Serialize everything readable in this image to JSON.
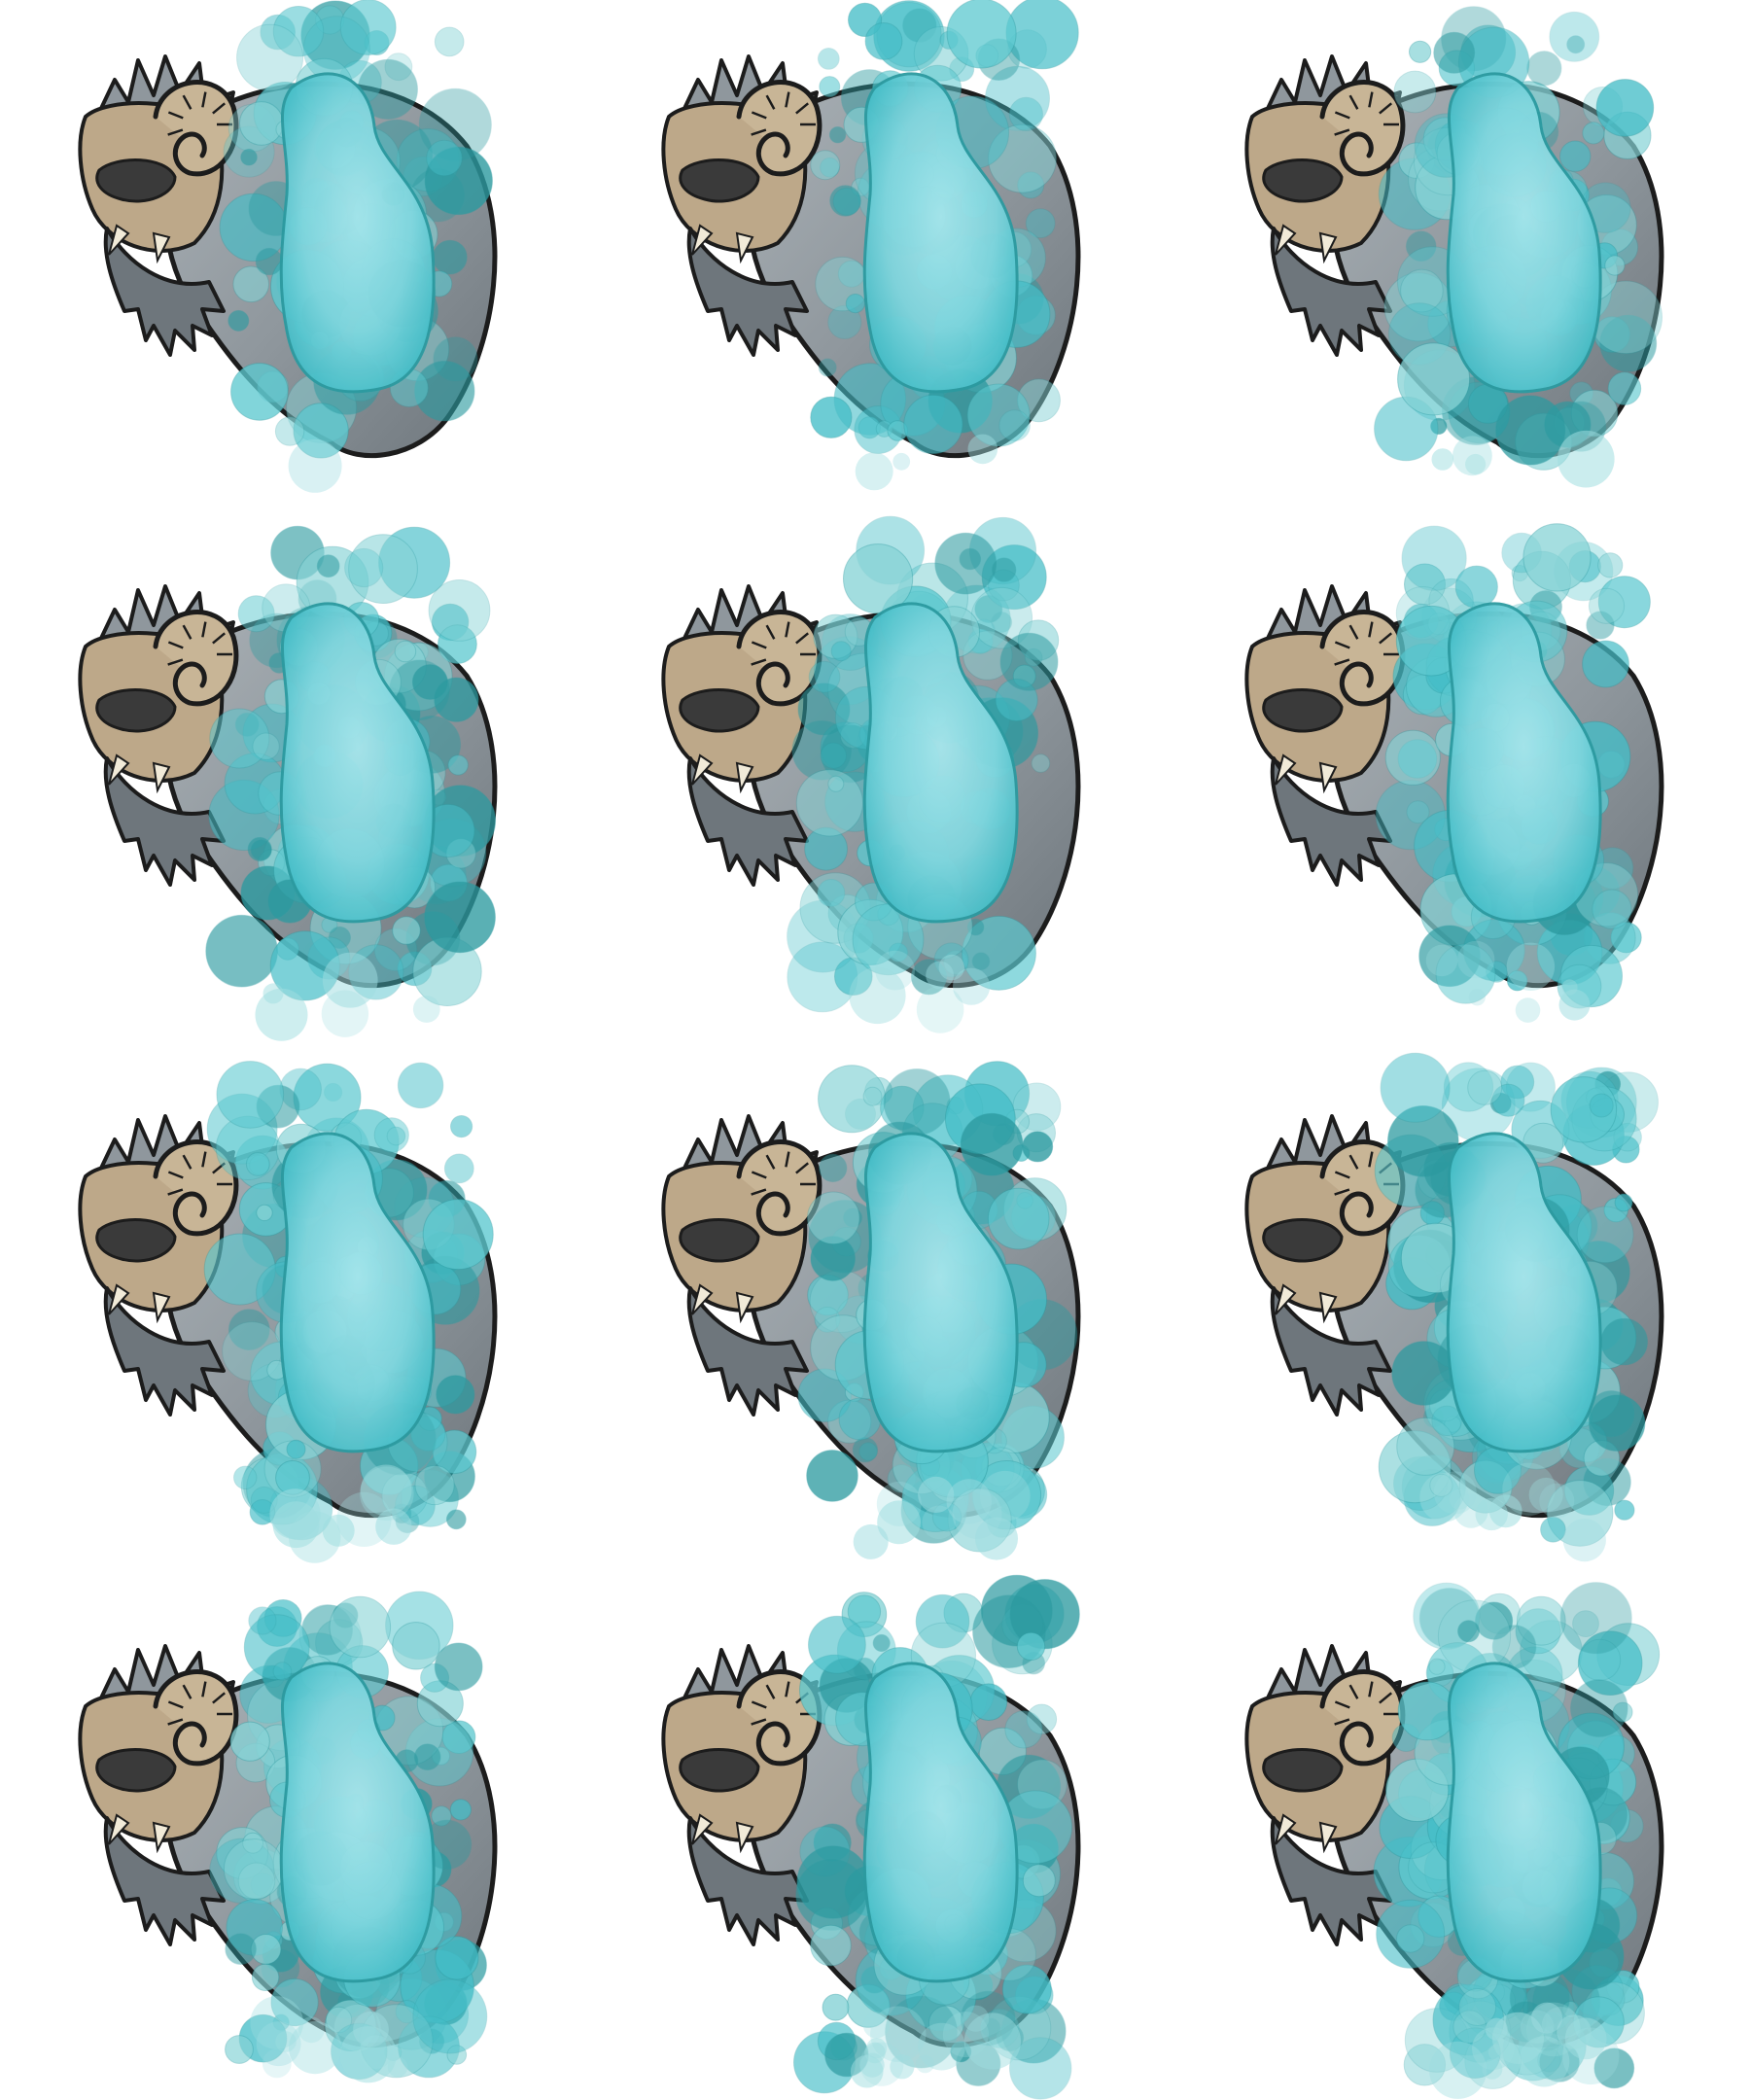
{
  "sprite_sheet": {
    "background": "#ffffff",
    "columns": 3,
    "rows": 4,
    "character": "ram-horned-yeti-creature",
    "effect": "turquoise-bubble-energy-burst",
    "colors": {
      "fur": "#8f979d",
      "fur_dark": "#6e767c",
      "face": "#bda889",
      "horn": "#c8b596",
      "outline": "#1c1c1c",
      "eyepatch": "#3a3a3a",
      "energy_core": "#7fd6de",
      "energy_mid": "#45bec8",
      "energy_dark": "#2c9aa0"
    },
    "frames": [
      {
        "index": 1,
        "burst_level": 0.1
      },
      {
        "index": 2,
        "burst_level": 0.18
      },
      {
        "index": 3,
        "burst_level": 0.26
      },
      {
        "index": 4,
        "burst_level": 0.34
      },
      {
        "index": 5,
        "burst_level": 0.42
      },
      {
        "index": 6,
        "burst_level": 0.5
      },
      {
        "index": 7,
        "burst_level": 0.58
      },
      {
        "index": 8,
        "burst_level": 0.66
      },
      {
        "index": 9,
        "burst_level": 0.74
      },
      {
        "index": 10,
        "burst_level": 0.82
      },
      {
        "index": 11,
        "burst_level": 0.91
      },
      {
        "index": 12,
        "burst_level": 1.0
      }
    ]
  }
}
